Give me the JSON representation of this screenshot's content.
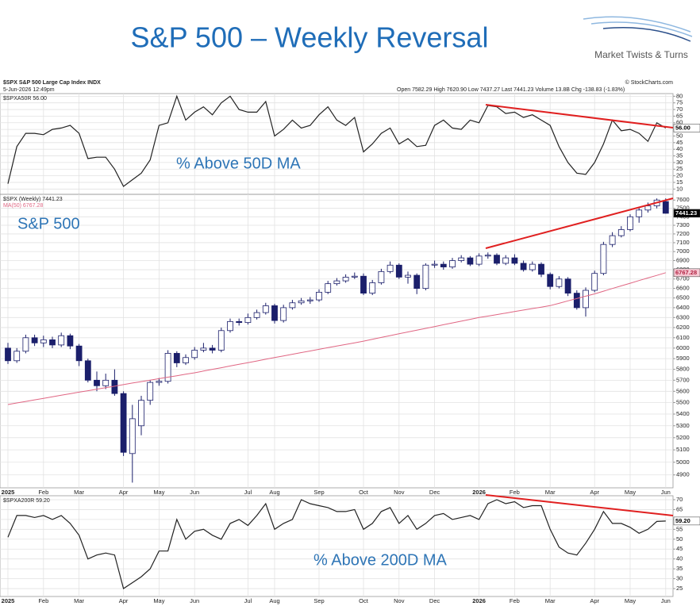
{
  "slide": {
    "title": "S&P 500 – Weekly Reversal",
    "logo": "Market Twists & Turns"
  },
  "header": {
    "symbol": "$SPX S&P 500 Large Cap Index INDX",
    "date": "5-Jun-2026 12:49pm",
    "quote": "Open 7582.29  High 7620.90  Low 7437.27  Last 7441.23  Volume 13.8B  Chg -138.83 (-1.83%)",
    "credit": "© StockCharts.com"
  },
  "chart_data": [
    {
      "type": "line",
      "annotation": "% Above 50D MA",
      "series": [
        {
          "name": "$SPXA50R",
          "color": "#222222",
          "value_label": "56.00",
          "values": [
            14,
            42,
            52,
            52,
            51,
            55,
            56,
            58,
            52,
            33,
            34,
            34,
            25,
            12,
            17,
            22,
            32,
            58,
            60,
            80,
            62,
            68,
            72,
            66,
            75,
            80,
            70,
            68,
            68,
            76,
            50,
            55,
            62,
            56,
            58,
            66,
            72,
            62,
            58,
            64,
            38,
            44,
            52,
            56,
            44,
            48,
            42,
            43,
            58,
            62,
            56,
            55,
            62,
            60,
            73,
            72,
            67,
            68,
            64,
            66,
            62,
            58,
            42,
            30,
            22,
            21,
            30,
            44,
            62,
            54,
            55,
            52,
            46,
            60,
            56
          ]
        }
      ],
      "ylim": [
        6,
        82
      ],
      "yticks": [
        10,
        15,
        20,
        25,
        30,
        35,
        40,
        45,
        50,
        55,
        60,
        65,
        70,
        75,
        80
      ],
      "grid": true
    },
    {
      "type": "candlestick",
      "annotation": "S&P 500",
      "log": true,
      "categories": [
        "2025",
        null,
        null,
        null,
        "Feb",
        null,
        null,
        null,
        "Mar",
        null,
        null,
        null,
        null,
        "Apr",
        null,
        null,
        null,
        "May",
        null,
        null,
        null,
        "Jun",
        null,
        null,
        null,
        null,
        null,
        "Jul",
        null,
        null,
        "Aug",
        null,
        null,
        null,
        null,
        "Sep",
        null,
        null,
        null,
        null,
        "Oct",
        null,
        null,
        null,
        "Nov",
        null,
        null,
        null,
        "Dec",
        null,
        null,
        null,
        null,
        "2026",
        null,
        null,
        null,
        "Feb",
        null,
        null,
        null,
        "Mar",
        null,
        null,
        null,
        null,
        "Apr",
        null,
        null,
        null,
        "May",
        null,
        null,
        null,
        "Jun"
      ],
      "series": [
        {
          "name": "$SPX (Weekly)",
          "color": "#1b1f6b",
          "value_label": "7441.23",
          "open": [
            6000,
            5880,
            5970,
            6100,
            6050,
            6080,
            6030,
            6120,
            6020,
            5880,
            5700,
            5650,
            5700,
            5580,
            5070,
            5300,
            5520,
            5680,
            5690,
            5950,
            5860,
            5910,
            5980,
            6000,
            5980,
            6170,
            6260,
            6250,
            6300,
            6350,
            6420,
            6270,
            6400,
            6450,
            6470,
            6480,
            6560,
            6650,
            6680,
            6720,
            6730,
            6550,
            6660,
            6780,
            6850,
            6720,
            6740,
            6600,
            6850,
            6860,
            6830,
            6900,
            6930,
            6860,
            6950,
            6960,
            6870,
            6930,
            6870,
            6800,
            6860,
            6750,
            6620,
            6700,
            6550,
            6400,
            6580,
            6760,
            7080,
            7180,
            7250,
            7400,
            7480,
            7530,
            7582.29
          ],
          "high": [
            6050,
            6000,
            6130,
            6130,
            6120,
            6110,
            6150,
            6140,
            6040,
            5900,
            5780,
            5760,
            5800,
            5600,
            5480,
            5560,
            5700,
            5720,
            5980,
            5970,
            5940,
            6010,
            6050,
            6030,
            6200,
            6290,
            6290,
            6340,
            6380,
            6450,
            6440,
            6430,
            6480,
            6500,
            6510,
            6590,
            6680,
            6710,
            6750,
            6770,
            6760,
            6690,
            6810,
            6890,
            6870,
            6780,
            6760,
            6870,
            6900,
            6890,
            6930,
            6960,
            6950,
            6980,
            6990,
            6980,
            6960,
            6970,
            6900,
            6890,
            6880,
            6770,
            6730,
            6720,
            6580,
            6610,
            6790,
            7110,
            7220,
            7290,
            7430,
            7510,
            7570,
            7620,
            7620.9
          ],
          "low": [
            5850,
            5860,
            5950,
            6020,
            6010,
            6000,
            6010,
            5990,
            5830,
            5680,
            5600,
            5620,
            5560,
            5050,
            4840,
            5220,
            5480,
            5650,
            5670,
            5820,
            5840,
            5890,
            5960,
            5950,
            5960,
            6150,
            6220,
            6230,
            6280,
            6330,
            6240,
            6250,
            6380,
            6430,
            6440,
            6460,
            6540,
            6630,
            6660,
            6700,
            6530,
            6530,
            6640,
            6760,
            6700,
            6650,
            6540,
            6580,
            6820,
            6800,
            6810,
            6880,
            6840,
            6840,
            6920,
            6850,
            6850,
            6850,
            6780,
            6780,
            6720,
            6590,
            6600,
            6520,
            6380,
            6310,
            6560,
            6740,
            7050,
            7160,
            7230,
            7330,
            7450,
            7500,
            7437.27
          ],
          "close": [
            5880,
            5970,
            6100,
            6050,
            6080,
            6030,
            6120,
            6020,
            5880,
            5700,
            5650,
            5700,
            5580,
            5080,
            5360,
            5520,
            5680,
            5690,
            5950,
            5860,
            5910,
            5980,
            6000,
            5980,
            6170,
            6260,
            6250,
            6300,
            6350,
            6420,
            6270,
            6400,
            6450,
            6470,
            6480,
            6560,
            6650,
            6680,
            6720,
            6730,
            6550,
            6660,
            6780,
            6850,
            6720,
            6740,
            6600,
            6850,
            6860,
            6830,
            6900,
            6930,
            6860,
            6950,
            6960,
            6870,
            6930,
            6870,
            6800,
            6860,
            6750,
            6620,
            6700,
            6550,
            6400,
            6580,
            6760,
            7080,
            7180,
            7250,
            7400,
            7480,
            7530,
            7600,
            7441.23
          ]
        },
        {
          "name": "MA(50)",
          "color": "#e06683",
          "value_label": "6767.28",
          "values": [
            5483,
            5497,
            5510,
            5524,
            5537,
            5551,
            5565,
            5578,
            5592,
            5605,
            5619,
            5633,
            5646,
            5660,
            5674,
            5687,
            5701,
            5714,
            5728,
            5741,
            5755,
            5768,
            5784,
            5800,
            5815,
            5831,
            5847,
            5862,
            5878,
            5894,
            5910,
            5925,
            5941,
            5957,
            5972,
            5988,
            6004,
            6020,
            6035,
            6051,
            6067,
            6085,
            6103,
            6121,
            6139,
            6157,
            6175,
            6192,
            6210,
            6228,
            6246,
            6264,
            6282,
            6300,
            6315,
            6330,
            6345,
            6360,
            6376,
            6391,
            6406,
            6421,
            6445,
            6470,
            6494,
            6519,
            6543,
            6571,
            6599,
            6627,
            6655,
            6683,
            6711,
            6739,
            6767.28
          ]
        }
      ],
      "ylim": [
        4800,
        7670
      ],
      "yticks": [
        4900,
        5000,
        5100,
        5200,
        5300,
        5400,
        5500,
        5600,
        5700,
        5800,
        5900,
        6000,
        6100,
        6200,
        6300,
        6400,
        6500,
        6600,
        6700,
        6800,
        6900,
        7000,
        7100,
        7200,
        7300,
        7400,
        7500,
        7600
      ],
      "grid": true
    },
    {
      "type": "line",
      "annotation": "% Above 200D MA",
      "categories": [
        "2025",
        null,
        null,
        null,
        "Feb",
        null,
        null,
        null,
        "Mar",
        null,
        null,
        null,
        null,
        "Apr",
        null,
        null,
        null,
        "May",
        null,
        null,
        null,
        "Jun",
        null,
        null,
        null,
        null,
        null,
        "Jul",
        null,
        null,
        "Aug",
        null,
        null,
        null,
        null,
        "Sep",
        null,
        null,
        null,
        null,
        "Oct",
        null,
        null,
        null,
        "Nov",
        null,
        null,
        null,
        "Dec",
        null,
        null,
        null,
        null,
        "2026",
        null,
        null,
        null,
        "Feb",
        null,
        null,
        null,
        "Mar",
        null,
        null,
        null,
        null,
        "Apr",
        null,
        null,
        null,
        "May",
        null,
        null,
        null,
        "Jun"
      ],
      "series": [
        {
          "name": "$SPXA200R",
          "color": "#222222",
          "value_label": "59.20",
          "values": [
            51,
            62,
            62,
            61,
            62,
            60,
            62,
            58,
            52,
            40,
            42,
            43,
            42,
            25,
            28,
            31,
            35,
            44,
            44,
            60,
            50,
            54,
            55,
            52,
            50,
            58,
            60,
            57,
            62,
            68,
            55,
            58,
            60,
            70,
            68,
            67,
            66,
            64,
            64,
            65,
            55,
            58,
            64,
            66,
            58,
            62,
            55,
            58,
            62,
            63,
            60,
            61,
            62,
            60,
            68,
            70,
            68,
            69,
            66,
            67,
            67,
            55,
            46,
            43,
            42,
            48,
            55,
            64,
            58,
            58,
            56,
            53,
            55,
            59,
            59.2
          ]
        }
      ],
      "ylim": [
        21,
        72
      ],
      "yticks": [
        25,
        30,
        35,
        40,
        45,
        50,
        55,
        60,
        65,
        70
      ],
      "grid": true
    }
  ]
}
